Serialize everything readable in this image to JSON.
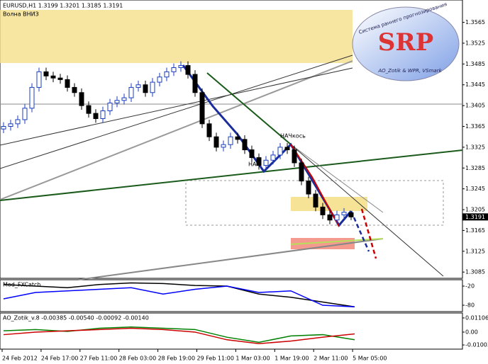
{
  "header": {
    "symbol_line": "EURUSD,H1  1.3199 1.3201 1.3185 1.3191",
    "label": "Волна ВНИЗ"
  },
  "logo": {
    "text": "SRP",
    "arc": "Система раннего прогнозирования",
    "sub": "AO_Zotik & WPR, VSmark"
  },
  "annotations": [
    "НАЧ",
    "НАЧкось"
  ],
  "time_axis": {
    "labels": [
      "24 Feb 2012",
      "24 Feb 17:00",
      "27 Feb 11:00",
      "28 Feb 03:00",
      "28 Feb 19:00",
      "29 Feb 11:00",
      "1 Mar 03:00",
      "1 Mar 19:00",
      "2 Mar 11:00",
      "5 Mar 05:00"
    ]
  },
  "chart_data": [
    {
      "type": "candlestick",
      "up_color": "#1a3dbf",
      "down_color": "#000000",
      "open": [
        1.336,
        1.3365,
        1.337,
        1.3378,
        1.34,
        1.344,
        1.347,
        1.3462,
        1.3458,
        1.3455,
        1.344,
        1.343,
        1.3405,
        1.339,
        1.338,
        1.3395,
        1.341,
        1.3415,
        1.342,
        1.344,
        1.3445,
        1.343,
        1.345,
        1.346,
        1.347,
        1.3478,
        1.3482,
        1.3465,
        1.343,
        1.337,
        1.3345,
        1.3325,
        1.333,
        1.3345,
        1.334,
        1.332,
        1.3305,
        1.329,
        1.33,
        1.331,
        1.3325,
        1.332,
        1.3295,
        1.326,
        1.3235,
        1.321,
        1.3195,
        1.3185,
        1.3195,
        1.3199
      ],
      "high": [
        1.3373,
        1.3378,
        1.3386,
        1.3408,
        1.3448,
        1.3478,
        1.3478,
        1.347,
        1.3466,
        1.3463,
        1.3448,
        1.3438,
        1.3413,
        1.3398,
        1.3403,
        1.3418,
        1.3423,
        1.3428,
        1.3448,
        1.3453,
        1.3453,
        1.3458,
        1.3468,
        1.3478,
        1.3486,
        1.349,
        1.349,
        1.3473,
        1.3438,
        1.3378,
        1.3353,
        1.3338,
        1.3353,
        1.3353,
        1.3348,
        1.3328,
        1.3313,
        1.3308,
        1.3318,
        1.3333,
        1.3333,
        1.3328,
        1.3303,
        1.3268,
        1.3243,
        1.3218,
        1.3203,
        1.3203,
        1.3208,
        1.3201
      ],
      "low": [
        1.3352,
        1.3357,
        1.3362,
        1.337,
        1.3392,
        1.3432,
        1.3454,
        1.345,
        1.3447,
        1.3432,
        1.3422,
        1.3397,
        1.3382,
        1.3372,
        1.3372,
        1.3387,
        1.3402,
        1.3407,
        1.3412,
        1.3432,
        1.3422,
        1.3422,
        1.3442,
        1.3452,
        1.3462,
        1.347,
        1.3457,
        1.3422,
        1.3362,
        1.3337,
        1.3317,
        1.3317,
        1.3322,
        1.3332,
        1.3312,
        1.3297,
        1.3282,
        1.3282,
        1.3292,
        1.3302,
        1.3312,
        1.3287,
        1.3252,
        1.3227,
        1.3202,
        1.3187,
        1.3177,
        1.3177,
        1.3187,
        1.3185
      ],
      "close": [
        1.3365,
        1.337,
        1.3378,
        1.34,
        1.344,
        1.347,
        1.3462,
        1.3458,
        1.3455,
        1.344,
        1.343,
        1.3405,
        1.339,
        1.338,
        1.3395,
        1.341,
        1.3415,
        1.342,
        1.344,
        1.3445,
        1.343,
        1.345,
        1.346,
        1.347,
        1.3478,
        1.3482,
        1.3465,
        1.343,
        1.337,
        1.3345,
        1.3325,
        1.333,
        1.3345,
        1.334,
        1.332,
        1.3305,
        1.329,
        1.33,
        1.331,
        1.3325,
        1.332,
        1.3295,
        1.326,
        1.3235,
        1.321,
        1.3195,
        1.3185,
        1.3195,
        1.32,
        1.3191
      ],
      "ylim": [
        1.3073,
        1.3608
      ],
      "yticks": [
        1.3565,
        1.3525,
        1.3485,
        1.3445,
        1.3405,
        1.3365,
        1.3325,
        1.3285,
        1.3245,
        1.3205,
        1.3165,
        1.3125,
        1.3085
      ]
    },
    {
      "type": "line",
      "title": "Mod_FXCatch",
      "ylim": [
        -100,
        0
      ],
      "yticks": [
        -20,
        -80
      ],
      "series": [
        {
          "color": "#000000",
          "values": [
            -15,
            -20,
            -25,
            -15,
            -10,
            -12,
            -18,
            -20,
            -45,
            -55,
            -70,
            -85
          ]
        },
        {
          "color": "#0000ff",
          "values": [
            -60,
            -40,
            -35,
            -30,
            -25,
            -45,
            -30,
            -20,
            -40,
            -35,
            -80,
            -85
          ]
        }
      ]
    },
    {
      "type": "line",
      "title": "AO_Zotik_v.8 -0.00385 -0.00540 -0.00092 -0.00140",
      "ylim": [
        -0.0133,
        0.0149
      ],
      "yticks": [
        0.01106,
        {
          "value": 0,
          "label": "0.00"
        },
        -0.01003
      ],
      "series": [
        {
          "color": "#008000",
          "values": [
            0.001,
            0.002,
            0.0005,
            0.003,
            0.004,
            0.003,
            0.002,
            -0.004,
            -0.008,
            -0.003,
            -0.002,
            -0.006
          ]
        },
        {
          "color": "#cc0000",
          "values": [
            -0.002,
            0.0,
            0.001,
            0.002,
            0.003,
            0.002,
            0.0,
            -0.006,
            -0.009,
            -0.007,
            -0.004,
            -0.0014
          ]
        }
      ]
    }
  ]
}
